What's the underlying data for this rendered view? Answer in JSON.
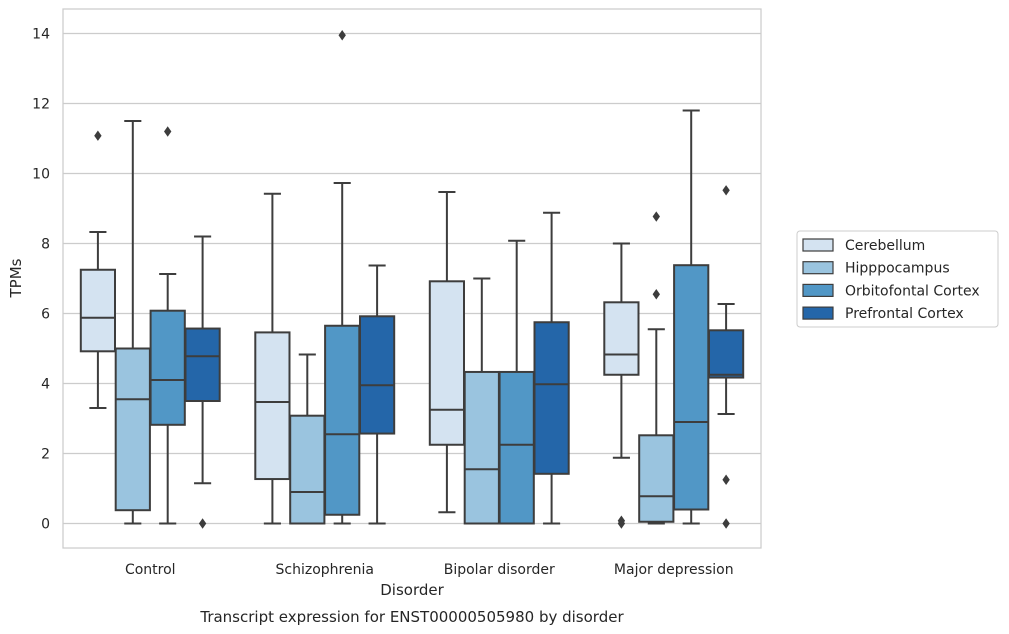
{
  "chart_data": {
    "type": "boxplot",
    "caption": "Transcript expression for ENST00000505980 by disorder",
    "xlabel": "Disorder",
    "ylabel": "TPMs",
    "ylim": [
      -0.7,
      14.7
    ],
    "yticks": [
      0,
      2,
      4,
      6,
      8,
      10,
      12,
      14
    ],
    "grid": "horizontal",
    "legend_position": "right",
    "categories": [
      "Control",
      "Schizophrenia",
      "Bipolar disorder",
      "Major depression"
    ],
    "series": [
      {
        "name": "Cerebellum",
        "color": "#d4e3f1",
        "boxes": [
          {
            "whisker_low": 3.3,
            "q1": 4.92,
            "median": 5.88,
            "q3": 7.25,
            "whisker_high": 8.33,
            "outliers": [
              11.08
            ]
          },
          {
            "whisker_low": 0.0,
            "q1": 1.27,
            "median": 3.47,
            "q3": 5.46,
            "whisker_high": 9.42,
            "outliers": []
          },
          {
            "whisker_low": 0.32,
            "q1": 2.25,
            "median": 3.25,
            "q3": 6.92,
            "whisker_high": 9.47,
            "outliers": []
          },
          {
            "whisker_low": 1.88,
            "q1": 4.25,
            "median": 4.83,
            "q3": 6.32,
            "whisker_high": 8.0,
            "outliers": [
              0.0,
              0.08
            ]
          }
        ]
      },
      {
        "name": "Hipppocampus",
        "color": "#9ac4df",
        "boxes": [
          {
            "whisker_low": 0.0,
            "q1": 0.38,
            "median": 3.55,
            "q3": 5.0,
            "whisker_high": 11.5,
            "outliers": []
          },
          {
            "whisker_low": 0.0,
            "q1": 0.0,
            "median": 0.9,
            "q3": 3.08,
            "whisker_high": 4.83,
            "outliers": []
          },
          {
            "whisker_low": 0.0,
            "q1": 0.0,
            "median": 1.55,
            "q3": 4.33,
            "whisker_high": 7.0,
            "outliers": []
          },
          {
            "whisker_low": 0.0,
            "q1": 0.05,
            "median": 0.78,
            "q3": 2.52,
            "whisker_high": 5.55,
            "outliers": [
              6.55,
              8.77
            ]
          }
        ]
      },
      {
        "name": "Orbitofontal Cortex",
        "color": "#5197c6",
        "boxes": [
          {
            "whisker_low": 0.0,
            "q1": 2.82,
            "median": 4.1,
            "q3": 6.08,
            "whisker_high": 7.13,
            "outliers": [
              11.2
            ]
          },
          {
            "whisker_low": 0.0,
            "q1": 0.25,
            "median": 2.55,
            "q3": 5.65,
            "whisker_high": 9.73,
            "outliers": [
              13.95
            ]
          },
          {
            "whisker_low": 0.0,
            "q1": 0.0,
            "median": 2.25,
            "q3": 4.33,
            "whisker_high": 8.08,
            "outliers": []
          },
          {
            "whisker_low": 0.0,
            "q1": 0.4,
            "median": 2.9,
            "q3": 7.38,
            "whisker_high": 11.8,
            "outliers": []
          }
        ]
      },
      {
        "name": "Prefrontal Cortex",
        "color": "#2466a9",
        "boxes": [
          {
            "whisker_low": 1.15,
            "q1": 3.5,
            "median": 4.78,
            "q3": 5.57,
            "whisker_high": 8.2,
            "outliers": [
              0.0
            ]
          },
          {
            "whisker_low": 0.0,
            "q1": 2.57,
            "median": 3.95,
            "q3": 5.92,
            "whisker_high": 7.37,
            "outliers": []
          },
          {
            "whisker_low": 0.0,
            "q1": 1.42,
            "median": 3.98,
            "q3": 5.75,
            "whisker_high": 8.88,
            "outliers": []
          },
          {
            "whisker_low": 3.13,
            "q1": 4.17,
            "median": 4.25,
            "q3": 5.52,
            "whisker_high": 6.27,
            "outliers": [
              0.0,
              1.25,
              9.52
            ]
          }
        ]
      }
    ]
  }
}
